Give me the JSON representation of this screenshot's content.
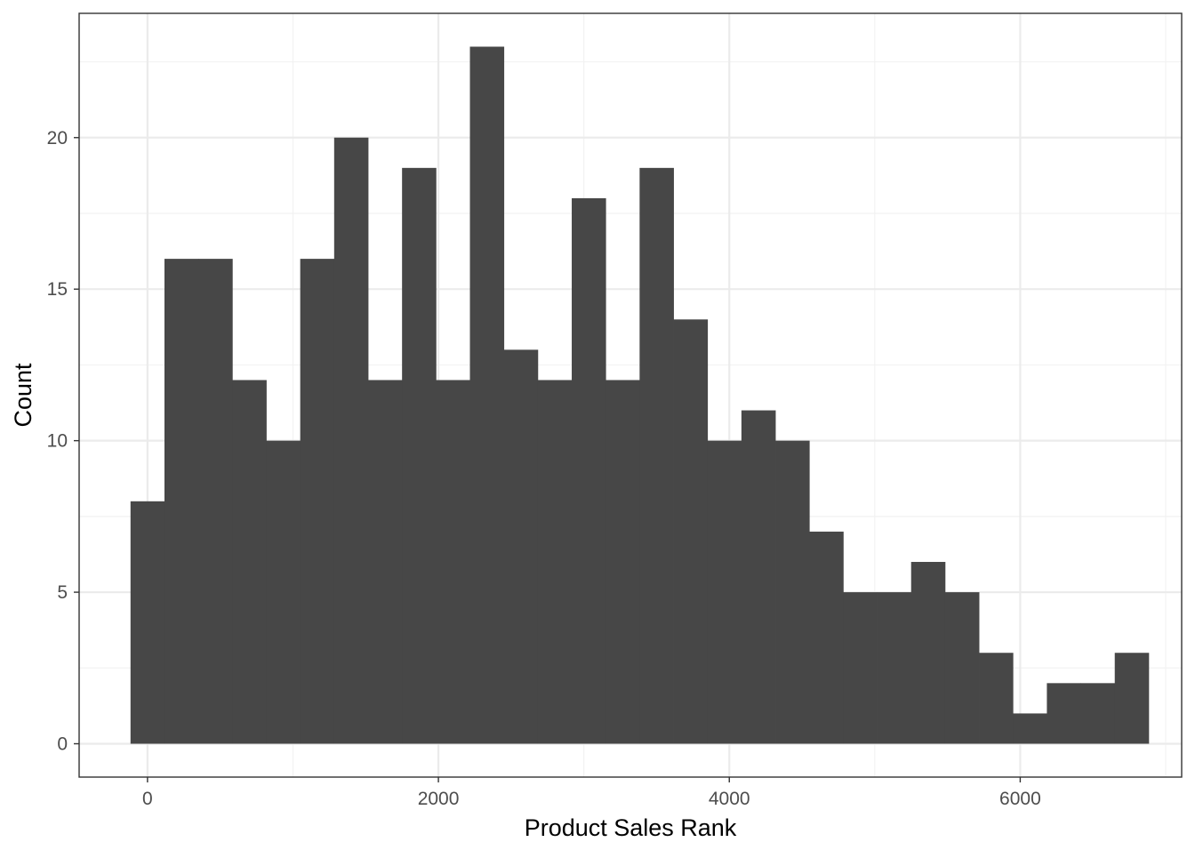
{
  "chart_data": {
    "type": "bar",
    "subtype": "histogram",
    "xlabel": "Product Sales Rank",
    "ylabel": "Count",
    "xlim": [
      -470,
      7110
    ],
    "ylim": [
      -1.1,
      24.1
    ],
    "x_ticks": [
      0,
      2000,
      4000,
      6000
    ],
    "x_tick_labels": [
      "0",
      "2000",
      "4000",
      "6000"
    ],
    "x_minor_ticks": [
      1000,
      3000,
      5000,
      7000
    ],
    "y_ticks": [
      0,
      5,
      10,
      15,
      20
    ],
    "y_tick_labels": [
      "0",
      "5",
      "10",
      "15",
      "20"
    ],
    "y_minor_ticks": [
      2.5,
      7.5,
      12.5,
      17.5,
      22.5
    ],
    "bin_width": 233.3,
    "bins": [
      {
        "x_start": -116.7,
        "x_end": 116.7,
        "count": 8
      },
      {
        "x_start": 116.7,
        "x_end": 350.0,
        "count": 16
      },
      {
        "x_start": 350.0,
        "x_end": 583.3,
        "count": 16
      },
      {
        "x_start": 583.3,
        "x_end": 816.7,
        "count": 12
      },
      {
        "x_start": 816.7,
        "x_end": 1050.0,
        "count": 10
      },
      {
        "x_start": 1050.0,
        "x_end": 1283.3,
        "count": 16
      },
      {
        "x_start": 1283.3,
        "x_end": 1516.7,
        "count": 20
      },
      {
        "x_start": 1516.7,
        "x_end": 1750.0,
        "count": 12
      },
      {
        "x_start": 1750.0,
        "x_end": 1983.3,
        "count": 19
      },
      {
        "x_start": 1983.3,
        "x_end": 2216.7,
        "count": 12
      },
      {
        "x_start": 2216.7,
        "x_end": 2450.0,
        "count": 23
      },
      {
        "x_start": 2450.0,
        "x_end": 2683.3,
        "count": 13
      },
      {
        "x_start": 2683.3,
        "x_end": 2916.7,
        "count": 12
      },
      {
        "x_start": 2916.7,
        "x_end": 3150.0,
        "count": 18
      },
      {
        "x_start": 3150.0,
        "x_end": 3383.3,
        "count": 12
      },
      {
        "x_start": 3383.3,
        "x_end": 3616.7,
        "count": 19
      },
      {
        "x_start": 3616.7,
        "x_end": 3850.0,
        "count": 14
      },
      {
        "x_start": 3850.0,
        "x_end": 4083.3,
        "count": 10
      },
      {
        "x_start": 4083.3,
        "x_end": 4316.7,
        "count": 11
      },
      {
        "x_start": 4316.7,
        "x_end": 4550.0,
        "count": 10
      },
      {
        "x_start": 4550.0,
        "x_end": 4783.3,
        "count": 7
      },
      {
        "x_start": 4783.3,
        "x_end": 5016.7,
        "count": 5
      },
      {
        "x_start": 5016.7,
        "x_end": 5250.0,
        "count": 5
      },
      {
        "x_start": 5250.0,
        "x_end": 5483.3,
        "count": 6
      },
      {
        "x_start": 5483.3,
        "x_end": 5716.7,
        "count": 5
      },
      {
        "x_start": 5716.7,
        "x_end": 5950.0,
        "count": 3
      },
      {
        "x_start": 5950.0,
        "x_end": 6183.3,
        "count": 1
      },
      {
        "x_start": 6183.3,
        "x_end": 6416.7,
        "count": 2
      },
      {
        "x_start": 6416.7,
        "x_end": 6650.0,
        "count": 2
      },
      {
        "x_start": 6650.0,
        "x_end": 6883.3,
        "count": 3
      }
    ],
    "grid": true,
    "legend": "none",
    "colors": {
      "bar_fill": "#474747",
      "panel_border": "#333333",
      "grid_major": "#ebebeb",
      "grid_minor": "#f2f2f2",
      "tick_text": "#4d4d4d",
      "title_text": "#000000",
      "background": "#ffffff"
    }
  }
}
